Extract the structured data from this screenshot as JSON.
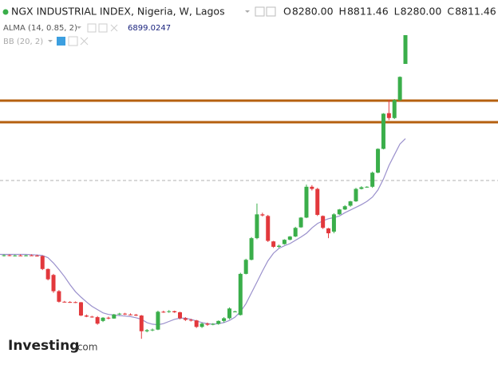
{
  "header": {
    "title": "NGX INDUSTRIAL INDEX, Nigeria, W, Lagos",
    "ohlc": [
      {
        "letter": "O",
        "value": "8280.00"
      },
      {
        "letter": "H",
        "value": "8811.46"
      },
      {
        "letter": "L",
        "value": "8280.00"
      },
      {
        "letter": "C",
        "value": "8811.46"
      }
    ],
    "indicators": [
      "ALMA (14, 0.85, 2)",
      "BB (20, 2)"
    ]
  },
  "logo": {
    "brand": "Investing",
    "suffix": ".com"
  },
  "chart_data": {
    "type": "candlestick",
    "ylim": [
      2642,
      9461
    ],
    "up_color": "#3aae4a",
    "down_color": "#e2383c",
    "open": [
      4740,
      4745,
      4735,
      4740,
      4738,
      4742,
      4736,
      4730,
      4490,
      4380,
      4080,
      3885,
      3880,
      3878,
      3875,
      3630,
      3610,
      3600,
      3530,
      3590,
      3575,
      3650,
      3665,
      3650,
      3645,
      3630,
      3340,
      3360,
      3370,
      3700,
      3695,
      3710,
      3690,
      3580,
      3550,
      3540,
      3420,
      3480,
      3460,
      3475,
      3530,
      3580,
      3700,
      3640,
      4400,
      4660,
      5060,
      5500,
      5470,
      5000,
      4900,
      4950,
      5030,
      5090,
      5260,
      5440,
      6010,
      5970,
      5470,
      5240,
      5180,
      5500,
      5590,
      5660,
      5740,
      5970,
      6000,
      6010,
      6270,
      6710,
      7370,
      7280,
      7610,
      8280
    ],
    "high": [
      4760,
      4760,
      4755,
      4760,
      4752,
      4760,
      4755,
      4740,
      4500,
      4400,
      4100,
      3900,
      3895,
      3890,
      3880,
      3650,
      3625,
      3620,
      3600,
      3610,
      3660,
      3680,
      3680,
      3670,
      3660,
      3640,
      3380,
      3390,
      3720,
      3720,
      3730,
      3720,
      3700,
      3600,
      3570,
      3550,
      3500,
      3500,
      3490,
      3540,
      3600,
      3780,
      3720,
      4420,
      4680,
      5080,
      5700,
      5530,
      5490,
      5010,
      4940,
      5040,
      5100,
      5270,
      5450,
      6050,
      6040,
      5990,
      5480,
      5250,
      5520,
      5600,
      5670,
      5750,
      5990,
      6020,
      6020,
      6290,
      6720,
      7370,
      7620,
      7630,
      8050,
      8811.46
    ],
    "low": [
      4720,
      4725,
      4720,
      4725,
      4722,
      4730,
      4720,
      4470,
      4280,
      4050,
      3870,
      3870,
      3865,
      3860,
      3620,
      3600,
      3590,
      3460,
      3510,
      3560,
      3570,
      3640,
      3640,
      3635,
      3620,
      3200,
      3320,
      3340,
      3360,
      3680,
      3680,
      3680,
      3560,
      3530,
      3520,
      3400,
      3400,
      3440,
      3450,
      3460,
      3500,
      3560,
      3690,
      3630,
      4390,
      4650,
      5040,
      5460,
      4990,
      4880,
      4880,
      4940,
      5020,
      5080,
      5250,
      5430,
      5940,
      5470,
      5230,
      5060,
      5150,
      5490,
      5580,
      5640,
      5730,
      5960,
      5990,
      5990,
      6260,
      6700,
      7240,
      7260,
      7600,
      8280
    ],
    "close": [
      4745,
      4735,
      4740,
      4738,
      4742,
      4736,
      4730,
      4490,
      4300,
      4080,
      3885,
      3880,
      3878,
      3875,
      3630,
      3610,
      3600,
      3480,
      3590,
      3575,
      3650,
      3665,
      3650,
      3645,
      3630,
      3340,
      3360,
      3370,
      3700,
      3695,
      3710,
      3690,
      3580,
      3550,
      3540,
      3420,
      3480,
      3460,
      3475,
      3530,
      3580,
      3760,
      3705,
      4400,
      4660,
      5060,
      5500,
      5480,
      5010,
      4900,
      4920,
      5030,
      5090,
      5250,
      5440,
      6010,
      5970,
      5490,
      5250,
      5150,
      5500,
      5590,
      5650,
      5740,
      5970,
      6000,
      6010,
      6270,
      6710,
      7360,
      7280,
      7610,
      8040,
      8811.46
    ],
    "alma": {
      "color": "#9a90cc",
      "values": [
        4760,
        4760,
        4760,
        4760,
        4760,
        4755,
        4750,
        4740,
        4700,
        4600,
        4480,
        4350,
        4200,
        4070,
        3970,
        3880,
        3800,
        3740,
        3680,
        3650,
        3640,
        3630,
        3620,
        3610,
        3590,
        3560,
        3500,
        3470,
        3460,
        3480,
        3520,
        3560,
        3580,
        3580,
        3560,
        3530,
        3500,
        3480,
        3470,
        3480,
        3500,
        3540,
        3600,
        3700,
        3850,
        4050,
        4250,
        4450,
        4640,
        4780,
        4870,
        4920,
        4960,
        5020,
        5080,
        5150,
        5250,
        5330,
        5380,
        5420,
        5440,
        5470,
        5530,
        5580,
        5630,
        5680,
        5740,
        5820,
        5950,
        6150,
        6400,
        6600,
        6800,
        6899.0247
      ]
    },
    "horizontal_lines": [
      {
        "value": 7601,
        "color": "#b5600f",
        "style": "solid"
      },
      {
        "value": 7203,
        "color": "#b5600f",
        "style": "solid"
      },
      {
        "value": 6125,
        "color": "#b0b0b0",
        "style": "dashed"
      }
    ]
  }
}
